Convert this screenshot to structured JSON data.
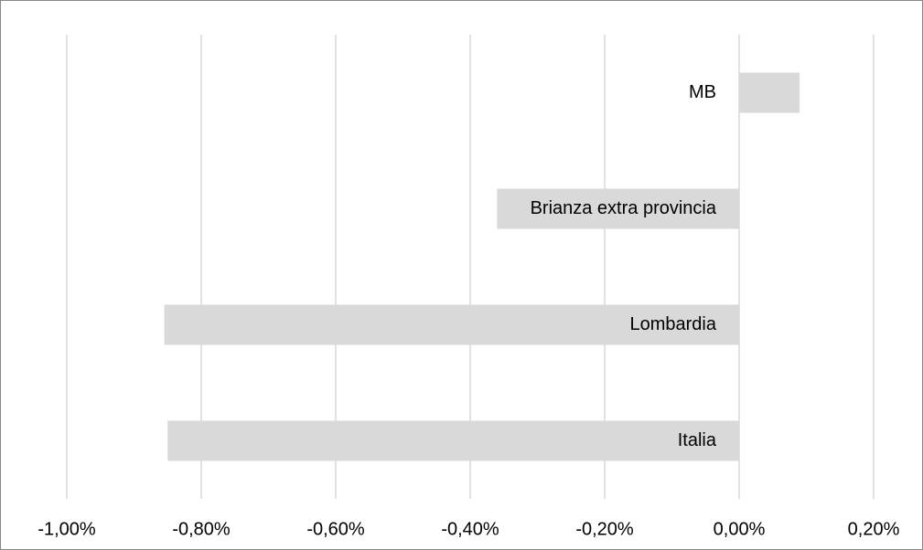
{
  "chart_data": {
    "type": "bar",
    "orientation": "horizontal",
    "categories": [
      "MB",
      "Brianza extra provincia",
      "Lombardia",
      "Italia"
    ],
    "values": [
      0.09,
      -0.36,
      -0.855,
      -0.85
    ],
    "color": "#d9d9d9",
    "xlim": [
      -1,
      0.2
    ],
    "xticks": [
      {
        "value": -1,
        "label": "-1,00%"
      },
      {
        "value": -0.8,
        "label": "-0,80%"
      },
      {
        "value": -0.6,
        "label": "-0,60%"
      },
      {
        "value": -0.4,
        "label": "-0,40%"
      },
      {
        "value": -0.2,
        "label": "-0,20%"
      },
      {
        "value": 0,
        "label": "0,00%"
      },
      {
        "value": 0.2,
        "label": "0,20%"
      }
    ],
    "grid": true
  }
}
